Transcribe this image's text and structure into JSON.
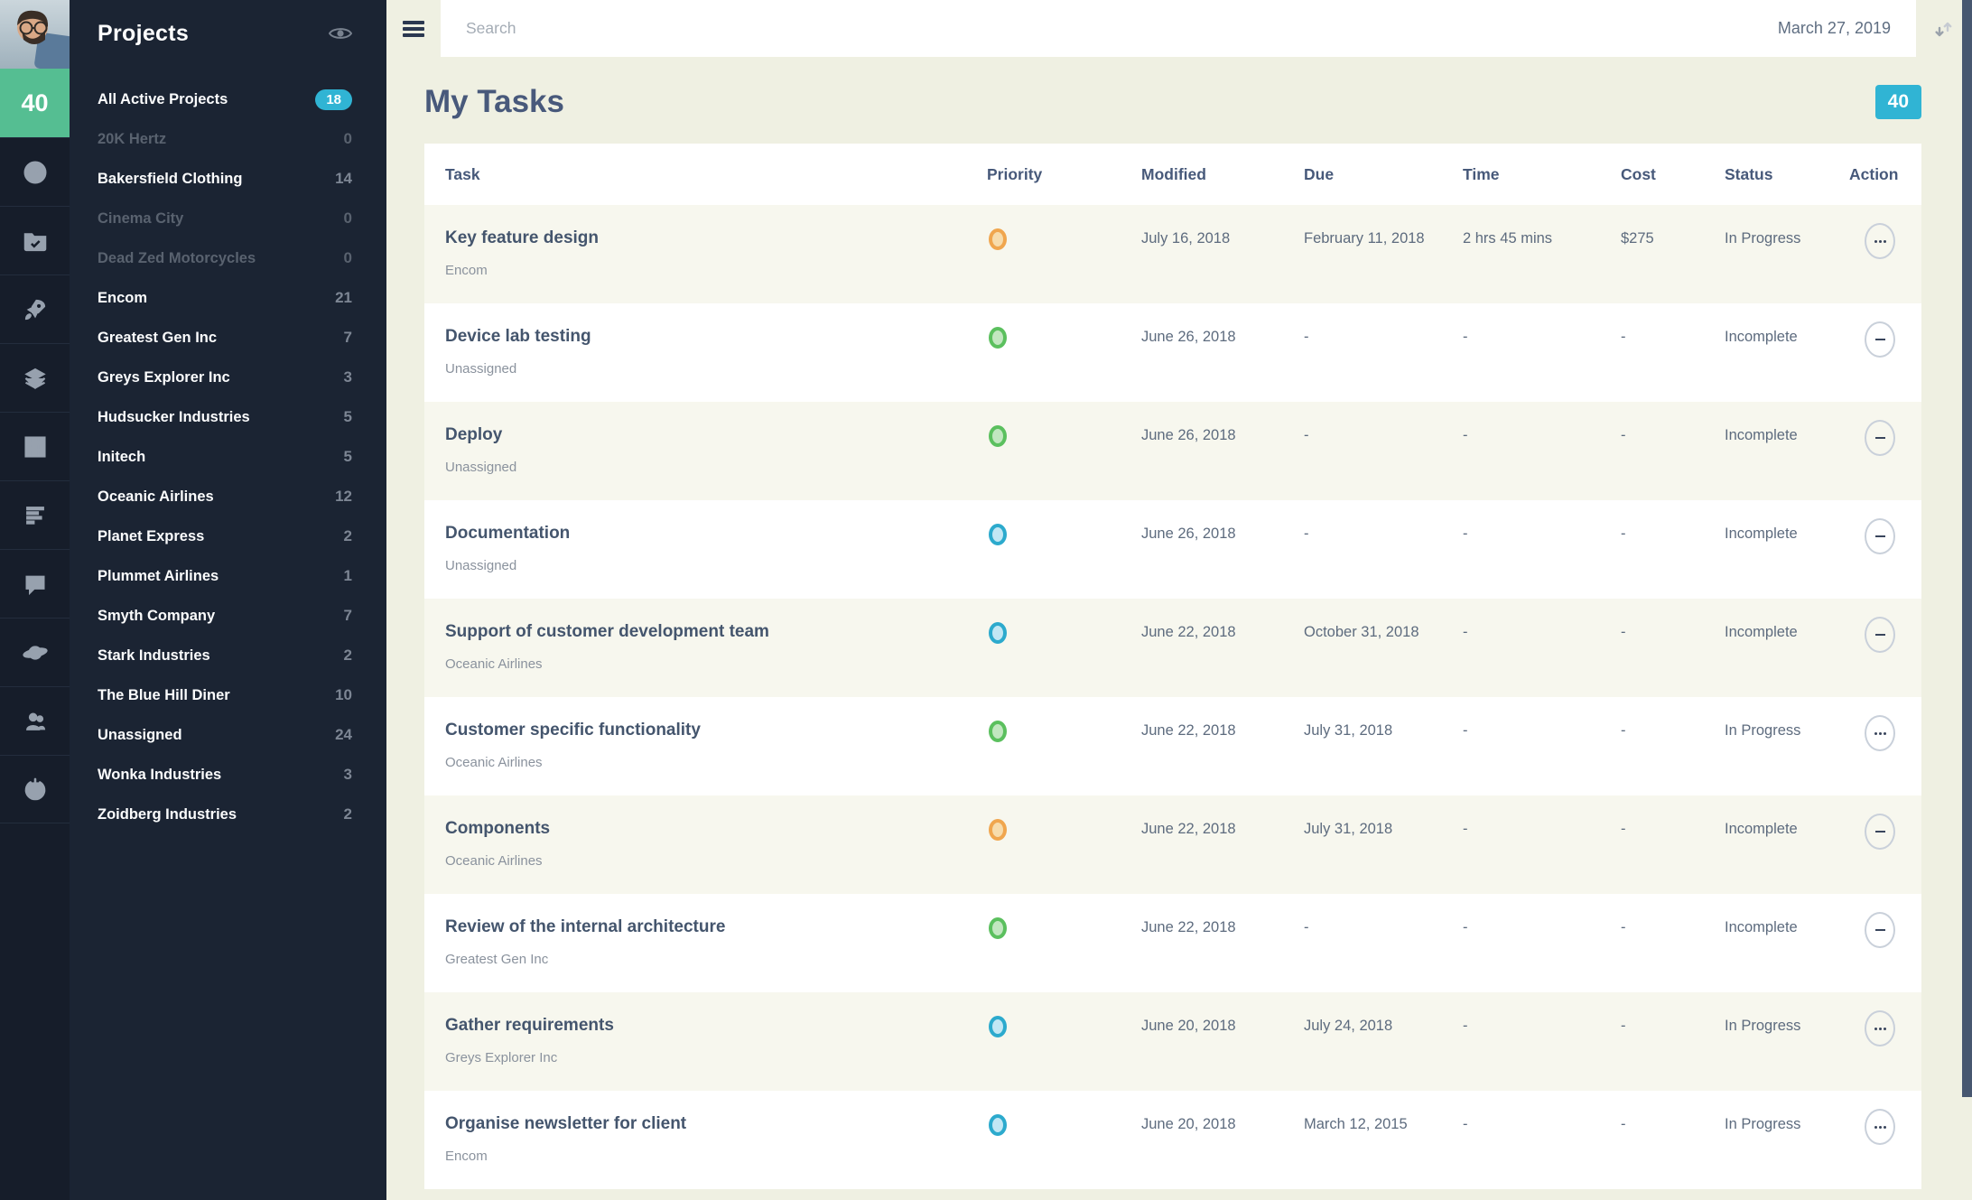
{
  "rail": {
    "badge": "40",
    "icons": [
      "dashboard-gauge",
      "projects-folder",
      "launch-rocket",
      "layers",
      "chart-grid",
      "task-bars",
      "messages",
      "planet",
      "team",
      "power"
    ]
  },
  "projects_panel": {
    "title": "Projects",
    "items": [
      {
        "label": "All Active Projects",
        "count": "18",
        "state": "active"
      },
      {
        "label": "20K Hertz",
        "count": "0",
        "state": "dimmed"
      },
      {
        "label": "Bakersfield Clothing",
        "count": "14",
        "state": "normal"
      },
      {
        "label": "Cinema City",
        "count": "0",
        "state": "dimmed"
      },
      {
        "label": "Dead Zed Motorcycles",
        "count": "0",
        "state": "dimmed"
      },
      {
        "label": "Encom",
        "count": "21",
        "state": "normal"
      },
      {
        "label": "Greatest Gen Inc",
        "count": "7",
        "state": "normal"
      },
      {
        "label": "Greys Explorer Inc",
        "count": "3",
        "state": "normal"
      },
      {
        "label": "Hudsucker Industries",
        "count": "5",
        "state": "normal"
      },
      {
        "label": "Initech",
        "count": "5",
        "state": "normal"
      },
      {
        "label": "Oceanic Airlines",
        "count": "12",
        "state": "normal"
      },
      {
        "label": "Planet Express",
        "count": "2",
        "state": "normal"
      },
      {
        "label": "Plummet Airlines",
        "count": "1",
        "state": "normal"
      },
      {
        "label": "Smyth Company",
        "count": "7",
        "state": "normal"
      },
      {
        "label": "Stark Industries",
        "count": "2",
        "state": "normal"
      },
      {
        "label": "The Blue Hill Diner",
        "count": "10",
        "state": "normal"
      },
      {
        "label": "Unassigned",
        "count": "24",
        "state": "normal"
      },
      {
        "label": "Wonka Industries",
        "count": "3",
        "state": "normal"
      },
      {
        "label": "Zoidberg Industries",
        "count": "2",
        "state": "normal"
      }
    ]
  },
  "topbar": {
    "search_placeholder": "Search",
    "date": "March 27, 2019"
  },
  "page": {
    "title": "My Tasks",
    "count_badge": "40"
  },
  "table": {
    "columns": [
      "Task",
      "Priority",
      "Modified",
      "Due",
      "Time",
      "Cost",
      "Status",
      "Action"
    ],
    "rows": [
      {
        "task": "Key feature design",
        "project": "Encom",
        "priority": "orange",
        "modified": "July 16, 2018",
        "due": "February 11, 2018",
        "time": "2 hrs 45 mins",
        "cost": "$275",
        "status": "In Progress",
        "action": "ellipsis"
      },
      {
        "task": "Device lab testing",
        "project": "Unassigned",
        "priority": "green",
        "modified": "June 26, 2018",
        "due": "-",
        "time": "-",
        "cost": "-",
        "status": "Incomplete",
        "action": "minus"
      },
      {
        "task": "Deploy",
        "project": "Unassigned",
        "priority": "green",
        "modified": "June 26, 2018",
        "due": "-",
        "time": "-",
        "cost": "-",
        "status": "Incomplete",
        "action": "minus"
      },
      {
        "task": "Documentation",
        "project": "Unassigned",
        "priority": "cyan",
        "modified": "June 26, 2018",
        "due": "-",
        "time": "-",
        "cost": "-",
        "status": "Incomplete",
        "action": "minus"
      },
      {
        "task": "Support of customer development team",
        "project": "Oceanic Airlines",
        "priority": "cyan",
        "modified": "June 22, 2018",
        "due": "October 31, 2018",
        "time": "-",
        "cost": "-",
        "status": "Incomplete",
        "action": "minus"
      },
      {
        "task": "Customer specific functionality",
        "project": "Oceanic Airlines",
        "priority": "green",
        "modified": "June 22, 2018",
        "due": "July 31, 2018",
        "time": "-",
        "cost": "-",
        "status": "In Progress",
        "action": "ellipsis"
      },
      {
        "task": "Components",
        "project": "Oceanic Airlines",
        "priority": "orange",
        "modified": "June 22, 2018",
        "due": "July 31, 2018",
        "time": "-",
        "cost": "-",
        "status": "Incomplete",
        "action": "minus"
      },
      {
        "task": "Review of the internal architecture",
        "project": "Greatest Gen Inc",
        "priority": "green",
        "modified": "June 22, 2018",
        "due": "-",
        "time": "-",
        "cost": "-",
        "status": "Incomplete",
        "action": "minus"
      },
      {
        "task": "Gather requirements",
        "project": "Greys Explorer Inc",
        "priority": "cyan",
        "modified": "June 20, 2018",
        "due": "July 24, 2018",
        "time": "-",
        "cost": "-",
        "status": "In Progress",
        "action": "ellipsis"
      },
      {
        "task": "Organise newsletter for client",
        "project": "Encom",
        "priority": "cyan",
        "modified": "June 20, 2018",
        "due": "March 12, 2015",
        "time": "-",
        "cost": "-",
        "status": "In Progress",
        "action": "ellipsis"
      }
    ]
  },
  "colors": {
    "accent_cyan": "#30B4D4",
    "rail_green": "#55BE92",
    "priority_orange": "#F0A64E",
    "priority_green": "#5BC05E",
    "priority_cyan": "#2CAACD"
  }
}
